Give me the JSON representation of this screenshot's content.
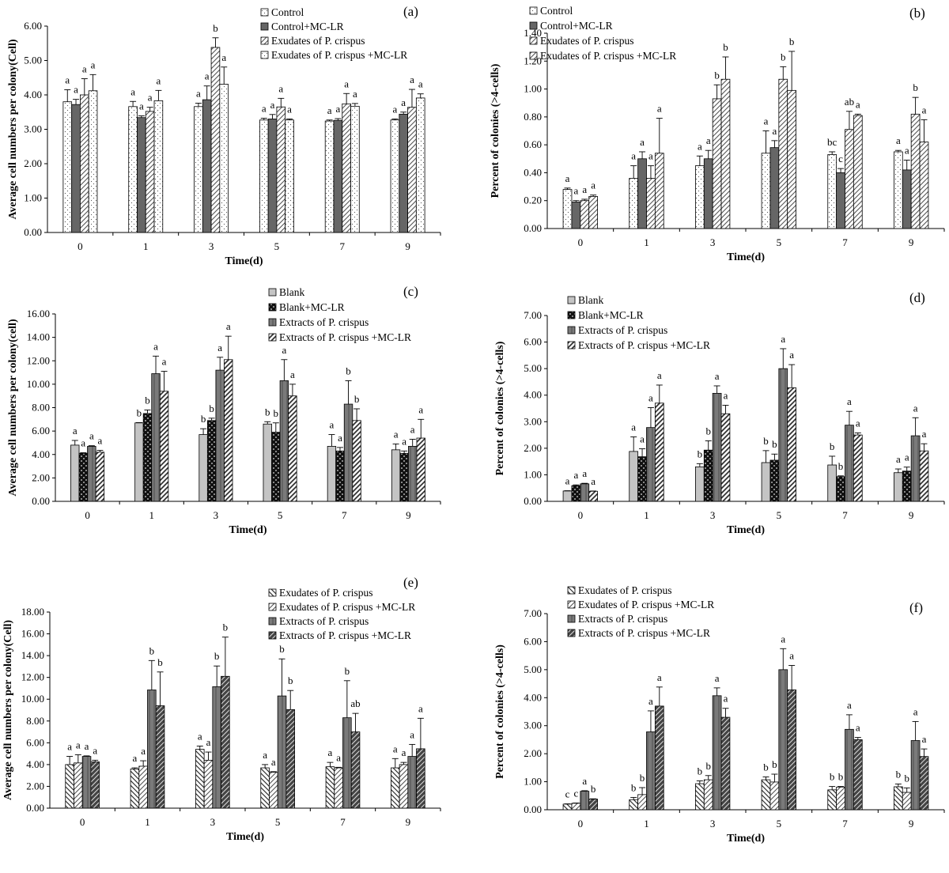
{
  "figure_title": "",
  "patterns": {
    "dots": {
      "bg": "#ffffff",
      "fg": "#555555"
    },
    "dark": {
      "bg": "#666666"
    },
    "dark_dots": {
      "bg": "#555555",
      "fg": "#bbbbbb"
    },
    "diag_light": {
      "bg": "#ffffff",
      "fg": "#555555"
    },
    "diag_dense": {
      "bg": "#ffffff",
      "fg": "#333333"
    },
    "light_gray": {
      "bg": "#c4c4c4"
    },
    "checker": {
      "bg": "#111111",
      "fg": "#8a8a8a"
    },
    "vert_gray": {
      "bg": "#7a7a7a",
      "fg": "#555555"
    },
    "diag_light_left": {
      "bg": "#ffffff",
      "fg": "#333333"
    },
    "diag_dark_thick": {
      "bg": "#444444",
      "fg": "#dddddd"
    }
  },
  "chart_data": [
    {
      "panel": "(a)",
      "type": "bar",
      "categories": [
        "0",
        "1",
        "3",
        "5",
        "7",
        "9"
      ],
      "xlabel": "Time(d)",
      "ylabel": "Average cell numbers  per colony(Cell)",
      "ylim": [
        0,
        6
      ],
      "yticks": [
        "0.00",
        "1.00",
        "2.00",
        "3.00",
        "4.00",
        "5.00",
        "6.00"
      ],
      "series": [
        {
          "name": "Control",
          "pattern": "dots",
          "values": [
            3.8,
            3.66,
            3.66,
            3.27,
            3.24,
            3.27
          ],
          "errors": [
            0.35,
            0.15,
            0.1,
            0.05,
            0.03,
            0.03
          ],
          "labels": [
            "a",
            "a",
            "a",
            "a",
            "a",
            "a"
          ]
        },
        {
          "name": "Control+MC-LR",
          "pattern": "dark",
          "values": [
            3.72,
            3.34,
            3.86,
            3.3,
            3.26,
            3.44
          ],
          "errors": [
            0.15,
            0.05,
            0.4,
            0.13,
            0.05,
            0.06
          ],
          "labels": [
            "a",
            "a",
            "a",
            "a",
            "a",
            "a"
          ]
        },
        {
          "name": "Exudates of P. crispus",
          "pattern": "diag_light",
          "values": [
            4.0,
            3.52,
            5.38,
            3.65,
            3.74,
            3.64
          ],
          "errors": [
            0.47,
            0.12,
            0.28,
            0.25,
            0.3,
            0.52
          ],
          "labels": [
            "a",
            "a",
            "b",
            "a",
            "a",
            "a"
          ]
        },
        {
          "name": "Exudates of P. crispus +MC-LR",
          "pattern": "dots",
          "values": [
            4.12,
            3.83,
            4.31,
            3.27,
            3.67,
            3.91
          ],
          "errors": [
            0.47,
            0.3,
            0.5,
            0.03,
            0.08,
            0.12
          ],
          "labels": [
            "a",
            "a",
            "a",
            "a",
            "a",
            "a"
          ]
        }
      ]
    },
    {
      "panel": "(b)",
      "type": "bar",
      "categories": [
        "0",
        "1",
        "3",
        "5",
        "7",
        "9"
      ],
      "xlabel": "Time(d)",
      "ylabel": "Percent of colonies (>4-cells)",
      "ylim": [
        0,
        1.4
      ],
      "yticks": [
        "0.00",
        "0.20",
        "0.40",
        "0.60",
        "0.80",
        "1.00",
        "1.20",
        "1.40"
      ],
      "series": [
        {
          "name": "Control",
          "pattern": "dots",
          "values": [
            0.28,
            0.36,
            0.45,
            0.54,
            0.53,
            0.55
          ],
          "errors": [
            0.01,
            0.09,
            0.07,
            0.16,
            0.02,
            0.01
          ],
          "labels": [
            "a",
            "a",
            "a",
            "a",
            "bc",
            "a"
          ]
        },
        {
          "name": "Control+MC-LR",
          "pattern": "dark",
          "values": [
            0.19,
            0.5,
            0.5,
            0.58,
            0.4,
            0.42
          ],
          "errors": [
            0.01,
            0.05,
            0.06,
            0.05,
            0.03,
            0.07
          ],
          "labels": [
            "a",
            "a",
            "a",
            "a",
            "c",
            "a"
          ]
        },
        {
          "name": "Exudates of P. crispus",
          "pattern": "diag_light",
          "values": [
            0.2,
            0.36,
            0.93,
            1.07,
            0.71,
            0.82
          ],
          "errors": [
            0.01,
            0.09,
            0.1,
            0.09,
            0.13,
            0.12
          ],
          "labels": [
            "a",
            "a",
            "b",
            "b",
            "ab",
            "b"
          ]
        },
        {
          "name": "Exudates of P. crispus +MC-LR",
          "pattern": "diag_light",
          "values": [
            0.23,
            0.54,
            1.07,
            0.99,
            0.81,
            0.62
          ],
          "errors": [
            0.01,
            0.25,
            0.16,
            0.28,
            0.01,
            0.16
          ],
          "labels": [
            "a",
            "a",
            "b",
            "b",
            "a",
            "a"
          ]
        }
      ]
    },
    {
      "panel": "(c)",
      "type": "bar",
      "categories": [
        "0",
        "1",
        "3",
        "5",
        "7",
        "9"
      ],
      "xlabel": "Time(d)",
      "ylabel": "Average cell numbers per colony(cell)",
      "ylim": [
        0,
        16
      ],
      "yticks": [
        "0.00",
        "2.00",
        "4.00",
        "6.00",
        "8.00",
        "10.00",
        "12.00",
        "14.00",
        "16.00"
      ],
      "series": [
        {
          "name": "Blank",
          "pattern": "light_gray",
          "values": [
            4.8,
            6.7,
            5.7,
            6.6,
            4.7,
            4.4
          ],
          "errors": [
            0.4,
            0.02,
            0.5,
            0.2,
            1.0,
            0.5
          ],
          "labels": [
            "a",
            "b",
            "b",
            "b",
            "a",
            "a"
          ]
        },
        {
          "name": "Blank+MC-LR",
          "pattern": "checker",
          "values": [
            4.1,
            7.5,
            6.9,
            5.9,
            4.3,
            4.1
          ],
          "errors": [
            0.05,
            0.3,
            0.2,
            0.8,
            0.3,
            0.2
          ],
          "labels": [
            "a",
            "b",
            "b",
            "b",
            "a",
            "a"
          ]
        },
        {
          "name": "Extracts of P. crispus",
          "pattern": "vert_gray",
          "values": [
            4.7,
            10.9,
            11.2,
            10.3,
            8.3,
            4.7
          ],
          "errors": [
            0.05,
            1.5,
            1.1,
            1.8,
            2.0,
            0.6
          ],
          "labels": [
            "a",
            "a",
            "a",
            "a",
            "b",
            "a"
          ]
        },
        {
          "name": "Extracts of P. crispus +MC-LR",
          "pattern": "diag_dense",
          "values": [
            4.2,
            9.4,
            12.1,
            9.0,
            6.9,
            5.4
          ],
          "errors": [
            0.15,
            1.7,
            2.0,
            1.0,
            1.0,
            1.6
          ],
          "labels": [
            "a",
            "a",
            "a",
            "a",
            "b",
            "a"
          ]
        }
      ]
    },
    {
      "panel": "(d)",
      "type": "bar",
      "categories": [
        "0",
        "1",
        "3",
        "5",
        "7",
        "9"
      ],
      "xlabel": "Time(d)",
      "ylabel": "Percent of colonies (>4-cells)",
      "ylim": [
        0,
        7
      ],
      "yticks": [
        "0.00",
        "1.00",
        "2.00",
        "3.00",
        "4.00",
        "5.00",
        "6.00",
        "7.00"
      ],
      "series": [
        {
          "name": "Blank",
          "pattern": "light_gray",
          "values": [
            0.39,
            1.88,
            1.3,
            1.46,
            1.37,
            1.08
          ],
          "errors": [
            0.01,
            0.55,
            0.12,
            0.45,
            0.33,
            0.14
          ],
          "labels": [
            "a",
            "a",
            "b",
            "b",
            "b",
            "a"
          ]
        },
        {
          "name": "Blank+MC-LR",
          "pattern": "checker",
          "values": [
            0.59,
            1.68,
            1.93,
            1.55,
            0.93,
            1.14
          ],
          "errors": [
            0.03,
            0.3,
            0.35,
            0.23,
            0.03,
            0.15
          ],
          "labels": [
            "a",
            "a",
            "b",
            "b",
            "b",
            "a"
          ]
        },
        {
          "name": "Extracts of P. crispus",
          "pattern": "vert_gray",
          "values": [
            0.66,
            2.78,
            4.07,
            5.0,
            2.87,
            2.47
          ],
          "errors": [
            0.02,
            0.75,
            0.28,
            0.75,
            0.52,
            0.68
          ],
          "labels": [
            "a",
            "a",
            "a",
            "a",
            "a",
            "a"
          ]
        },
        {
          "name": "Extracts of P. crispus +MC-LR",
          "pattern": "diag_dense",
          "values": [
            0.38,
            3.7,
            3.3,
            4.28,
            2.5,
            1.9
          ],
          "errors": [
            0.01,
            0.68,
            0.32,
            0.87,
            0.08,
            0.27
          ],
          "labels": [
            "a",
            "a",
            "a",
            "a",
            "a",
            "a"
          ]
        }
      ]
    },
    {
      "panel": "(e)",
      "type": "bar",
      "categories": [
        "0",
        "1",
        "3",
        "5",
        "7",
        "9"
      ],
      "xlabel": "Time(d)",
      "ylabel": "Average cell numbers per colony(Cell)",
      "ylim": [
        0,
        18
      ],
      "yticks": [
        "0.00",
        "2.00",
        "4.00",
        "6.00",
        "8.00",
        "10.00",
        "12.00",
        "14.00",
        "16.00",
        "18.00"
      ],
      "series": [
        {
          "name": "Exudates of P. crispus",
          "pattern": "diag_light_left",
          "values": [
            4.0,
            3.6,
            5.4,
            3.7,
            3.8,
            3.7
          ],
          "errors": [
            0.75,
            0.1,
            0.3,
            0.3,
            0.4,
            0.85
          ],
          "labels": [
            "a",
            "a",
            "a",
            "a",
            "a",
            "a"
          ]
        },
        {
          "name": "Exudates of P. crispus +MC-LR",
          "pattern": "diag_light",
          "values": [
            4.15,
            3.85,
            4.4,
            3.3,
            3.7,
            4.0
          ],
          "errors": [
            0.75,
            0.5,
            0.75,
            0.05,
            0.05,
            0.2
          ],
          "labels": [
            "a",
            "a",
            "a",
            "a",
            "a",
            "a"
          ]
        },
        {
          "name": "Extracts of P. crispus",
          "pattern": "vert_gray",
          "values": [
            4.75,
            10.85,
            11.15,
            10.3,
            8.3,
            4.75
          ],
          "errors": [
            0.05,
            2.7,
            1.9,
            3.4,
            3.4,
            1.1
          ],
          "labels": [
            "a",
            "b",
            "b",
            "b",
            "b",
            "a"
          ]
        },
        {
          "name": "Extracts of P. crispus +MC-LR",
          "pattern": "diag_dark_thick",
          "values": [
            4.25,
            9.4,
            12.1,
            9.05,
            7.0,
            5.45
          ],
          "errors": [
            0.15,
            3.1,
            3.6,
            1.75,
            1.7,
            2.8
          ],
          "labels": [
            "a",
            "b",
            "b",
            "b",
            "ab",
            "a"
          ]
        }
      ]
    },
    {
      "panel": "(f)",
      "type": "bar",
      "categories": [
        "0",
        "1",
        "3",
        "5",
        "7",
        "9"
      ],
      "xlabel": "Time(d)",
      "ylabel": "Percent of colonies (>4-cells)",
      "ylim": [
        0,
        7
      ],
      "yticks": [
        "0.00",
        "1.00",
        "2.00",
        "3.00",
        "4.00",
        "5.00",
        "6.00",
        "7.00"
      ],
      "series": [
        {
          "name": "Exudates of P. crispus",
          "pattern": "diag_light_left",
          "values": [
            0.2,
            0.36,
            0.93,
            1.07,
            0.71,
            0.82
          ],
          "errors": [
            0.01,
            0.08,
            0.1,
            0.1,
            0.12,
            0.1
          ],
          "labels": [
            "c",
            "b",
            "b",
            "b",
            "b",
            "b"
          ]
        },
        {
          "name": "Exudates of P. crispus +MC-LR",
          "pattern": "diag_light",
          "values": [
            0.23,
            0.54,
            1.07,
            0.99,
            0.81,
            0.62
          ],
          "errors": [
            0.01,
            0.25,
            0.15,
            0.28,
            0.02,
            0.16
          ],
          "labels": [
            "c",
            "b",
            "b",
            "b",
            "b",
            "b"
          ]
        },
        {
          "name": "Extracts of P. crispus",
          "pattern": "vert_gray",
          "values": [
            0.66,
            2.78,
            4.07,
            5.0,
            2.87,
            2.47
          ],
          "errors": [
            0.02,
            0.75,
            0.28,
            0.75,
            0.52,
            0.68
          ],
          "labels": [
            "a",
            "a",
            "a",
            "a",
            "a",
            "a"
          ]
        },
        {
          "name": "Extracts of P. crispus +MC-LR",
          "pattern": "diag_dark_thick",
          "values": [
            0.38,
            3.7,
            3.3,
            4.28,
            2.5,
            1.9
          ],
          "errors": [
            0.01,
            0.68,
            0.32,
            0.87,
            0.08,
            0.27
          ],
          "labels": [
            "b",
            "a",
            "a",
            "a",
            "a",
            "a"
          ]
        }
      ]
    }
  ]
}
